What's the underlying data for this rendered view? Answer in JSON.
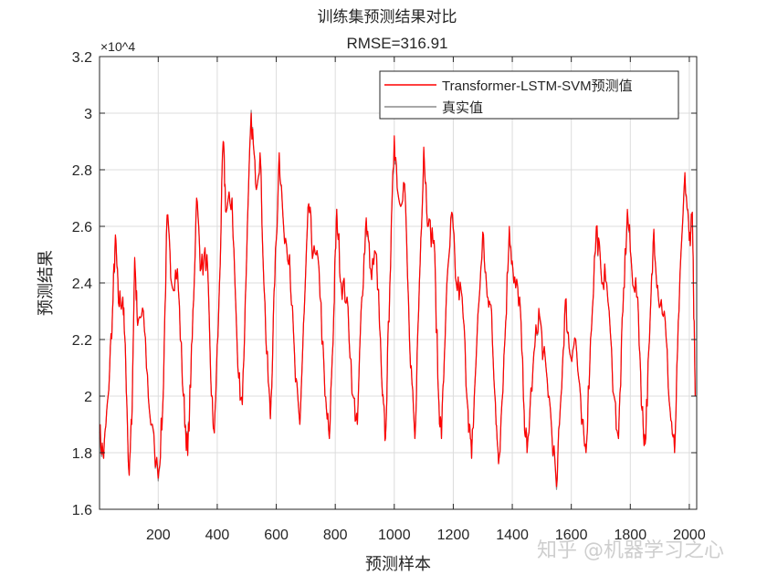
{
  "chart_data": {
    "type": "line",
    "title": "训练集预测结果对比",
    "subtitle": "RMSE=316.91",
    "xlabel": "预测样本",
    "ylabel": "预测结果",
    "y_exponent_label": "×10^4",
    "xlim": [
      1,
      2025
    ],
    "ylim": [
      16000,
      32000
    ],
    "xticks": [
      200,
      400,
      600,
      800,
      1000,
      1200,
      1400,
      1600,
      1800,
      2000
    ],
    "yticks": [
      16000,
      18000,
      20000,
      22000,
      24000,
      26000,
      28000,
      30000,
      32000
    ],
    "ytick_labels": [
      "1.6",
      "1.8",
      "2",
      "2.2",
      "2.4",
      "2.6",
      "2.8",
      "3",
      "3.2"
    ],
    "grid": true,
    "legend_placement": "top-right",
    "x": [
      1,
      15,
      30,
      45,
      55,
      65,
      80,
      90,
      100,
      110,
      120,
      130,
      150,
      170,
      200,
      215,
      230,
      245,
      265,
      285,
      300,
      315,
      330,
      345,
      365,
      380,
      390,
      405,
      420,
      430,
      450,
      470,
      485,
      500,
      515,
      530,
      545,
      565,
      580,
      595,
      610,
      625,
      645,
      665,
      680,
      695,
      710,
      725,
      745,
      765,
      780,
      795,
      805,
      820,
      840,
      860,
      875,
      890,
      905,
      920,
      940,
      960,
      970,
      985,
      1000,
      1015,
      1035,
      1055,
      1070,
      1085,
      1100,
      1115,
      1135,
      1150,
      1160,
      1175,
      1195,
      1210,
      1230,
      1250,
      1262,
      1280,
      1300,
      1315,
      1330,
      1345,
      1355,
      1375,
      1390,
      1405,
      1425,
      1440,
      1450,
      1470,
      1490,
      1505,
      1525,
      1550,
      1565,
      1580,
      1595,
      1615,
      1635,
      1650,
      1665,
      1685,
      1700,
      1720,
      1745,
      1760,
      1775,
      1790,
      1805,
      1825,
      1840,
      1850,
      1865,
      1880,
      1895,
      1915,
      1935,
      1950,
      1965,
      1985,
      2000,
      2010,
      2020
    ],
    "series": [
      {
        "name": "Transformer-LSTM-SVM预测值",
        "color": "#ff0000",
        "values": [
          18700,
          17800,
          20000,
          23000,
          25700,
          23300,
          23500,
          21000,
          17400,
          19000,
          24900,
          22500,
          23000,
          19500,
          17100,
          19500,
          26400,
          24000,
          24500,
          20000,
          17900,
          22000,
          27000,
          24500,
          25000,
          20000,
          18700,
          23000,
          29000,
          26500,
          27000,
          21000,
          19700,
          25000,
          30000,
          27500,
          28600,
          22000,
          19200,
          24000,
          28600,
          26000,
          25000,
          20500,
          19000,
          23000,
          26800,
          25000,
          24500,
          20000,
          18500,
          23000,
          26600,
          24000,
          23500,
          20000,
          19000,
          23500,
          26300,
          24500,
          25000,
          20000,
          18500,
          24000,
          29200,
          27000,
          27500,
          21000,
          18500,
          24000,
          28800,
          26000,
          25500,
          20000,
          18500,
          23000,
          26500,
          24000,
          23500,
          19500,
          17800,
          22000,
          25800,
          23500,
          23000,
          19000,
          17800,
          22000,
          26000,
          24000,
          23500,
          19500,
          18000,
          21000,
          23100,
          21500,
          20000,
          16800,
          20000,
          23400,
          21500,
          22000,
          19000,
          18000,
          22000,
          26000,
          24500,
          24000,
          20000,
          18500,
          23000,
          26600,
          24500,
          23500,
          19500,
          18300,
          22000,
          25900,
          23500,
          23000,
          19500,
          18000,
          23000,
          27900,
          25500,
          26500,
          20000
        ]
      },
      {
        "name": "真实值",
        "color": "#8c8c8c",
        "values": [
          18500,
          17800,
          20000,
          23000,
          25600,
          23300,
          23500,
          21000,
          17400,
          19000,
          24800,
          22500,
          23000,
          19500,
          17000,
          19500,
          26300,
          24000,
          24500,
          20000,
          18000,
          22000,
          26900,
          24500,
          25000,
          20000,
          18700,
          23000,
          28900,
          26500,
          27000,
          21000,
          19700,
          25000,
          30100,
          27500,
          28500,
          22000,
          19200,
          24000,
          28500,
          26000,
          25000,
          20500,
          19000,
          23000,
          26800,
          25000,
          24500,
          20000,
          18500,
          23000,
          26600,
          24000,
          23500,
          20000,
          19000,
          23500,
          26200,
          24500,
          25000,
          20000,
          18500,
          24000,
          29000,
          27000,
          27500,
          21000,
          18500,
          24000,
          28700,
          26000,
          25500,
          20000,
          18500,
          23000,
          26400,
          24000,
          23500,
          19500,
          17800,
          22000,
          25700,
          23500,
          23000,
          19000,
          17800,
          22000,
          25900,
          24000,
          23500,
          19500,
          18000,
          21000,
          23000,
          21500,
          20000,
          16700,
          20000,
          23300,
          21500,
          22000,
          19000,
          18000,
          22000,
          25900,
          24500,
          24000,
          20000,
          18500,
          23000,
          26500,
          24500,
          23500,
          19500,
          18300,
          22000,
          25800,
          23500,
          23000,
          19500,
          18000,
          23000,
          27800,
          25500,
          26500,
          20000
        ]
      }
    ]
  },
  "watermark": "知乎 @机器学习之心"
}
